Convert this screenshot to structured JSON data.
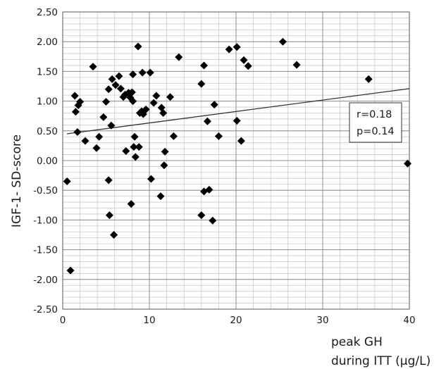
{
  "chart_data": {
    "type": "scatter",
    "xlabel": [
      "peak GH",
      "during ITT (µg/L)"
    ],
    "ylabel": "IGF-1- SD-score",
    "xlim": [
      0,
      40
    ],
    "ylim": [
      -2.5,
      2.5
    ],
    "x_ticks": [
      0,
      10,
      20,
      30,
      40
    ],
    "x_tick_labels": [
      "0",
      "10",
      "20",
      "30",
      "40"
    ],
    "y_ticks": [
      -2.5,
      -2.0,
      -1.5,
      -1.0,
      -0.5,
      0.0,
      0.5,
      1.0,
      1.5,
      2.0,
      2.5
    ],
    "y_tick_labels": [
      "-2.50",
      "-2.00",
      "-1.50",
      "-1.00",
      "-0.50",
      "0.00",
      "0.50",
      "1.00",
      "1.50",
      "2.00",
      "2.50"
    ],
    "grid": true,
    "marker": "diamond",
    "marker_color": "#000000",
    "trendline": {
      "x": [
        0.5,
        40
      ],
      "y": [
        0.45,
        1.21
      ]
    },
    "annotation": {
      "lines": [
        "r=0.18",
        "p=0.14"
      ]
    },
    "points": [
      {
        "x": 0.5,
        "y": -0.35
      },
      {
        "x": 0.9,
        "y": -1.85
      },
      {
        "x": 1.4,
        "y": 1.09
      },
      {
        "x": 1.5,
        "y": 0.82
      },
      {
        "x": 1.7,
        "y": 0.48
      },
      {
        "x": 1.8,
        "y": 0.93
      },
      {
        "x": 2.0,
        "y": 0.99
      },
      {
        "x": 2.6,
        "y": 0.33
      },
      {
        "x": 3.5,
        "y": 1.58
      },
      {
        "x": 3.9,
        "y": 0.21
      },
      {
        "x": 4.2,
        "y": 0.4
      },
      {
        "x": 4.7,
        "y": 0.73
      },
      {
        "x": 5.0,
        "y": 0.99
      },
      {
        "x": 5.3,
        "y": 1.2
      },
      {
        "x": 5.3,
        "y": -0.33
      },
      {
        "x": 5.4,
        "y": -0.92
      },
      {
        "x": 5.6,
        "y": 0.59
      },
      {
        "x": 5.7,
        "y": 1.37
      },
      {
        "x": 5.9,
        "y": -1.25
      },
      {
        "x": 6.1,
        "y": 1.27
      },
      {
        "x": 6.5,
        "y": 1.42
      },
      {
        "x": 6.7,
        "y": 1.21
      },
      {
        "x": 7.0,
        "y": 1.07
      },
      {
        "x": 7.2,
        "y": 1.11
      },
      {
        "x": 7.3,
        "y": 0.16
      },
      {
        "x": 7.6,
        "y": 1.14
      },
      {
        "x": 7.8,
        "y": 1.06
      },
      {
        "x": 7.9,
        "y": -0.73
      },
      {
        "x": 8.0,
        "y": 1.15
      },
      {
        "x": 8.1,
        "y": 1.0
      },
      {
        "x": 8.1,
        "y": 1.45
      },
      {
        "x": 8.2,
        "y": 0.23
      },
      {
        "x": 8.3,
        "y": 0.4
      },
      {
        "x": 8.4,
        "y": 0.06
      },
      {
        "x": 8.7,
        "y": 1.92
      },
      {
        "x": 8.8,
        "y": 0.23
      },
      {
        "x": 8.9,
        "y": 0.8
      },
      {
        "x": 9.1,
        "y": 0.83
      },
      {
        "x": 9.2,
        "y": 1.48
      },
      {
        "x": 9.3,
        "y": 0.78
      },
      {
        "x": 9.6,
        "y": 0.86
      },
      {
        "x": 10.1,
        "y": 1.48
      },
      {
        "x": 10.2,
        "y": -0.31
      },
      {
        "x": 10.5,
        "y": 0.97
      },
      {
        "x": 10.8,
        "y": 1.09
      },
      {
        "x": 11.3,
        "y": -0.6
      },
      {
        "x": 11.4,
        "y": 0.89
      },
      {
        "x": 11.6,
        "y": 0.8
      },
      {
        "x": 11.7,
        "y": -0.08
      },
      {
        "x": 11.8,
        "y": 0.15
      },
      {
        "x": 12.4,
        "y": 1.07
      },
      {
        "x": 12.8,
        "y": 0.41
      },
      {
        "x": 13.4,
        "y": 1.74
      },
      {
        "x": 16.0,
        "y": 1.29
      },
      {
        "x": 16.0,
        "y": -0.92
      },
      {
        "x": 16.3,
        "y": 1.6
      },
      {
        "x": 16.3,
        "y": -0.52
      },
      {
        "x": 16.7,
        "y": 0.66
      },
      {
        "x": 16.9,
        "y": -0.49
      },
      {
        "x": 17.3,
        "y": -1.01
      },
      {
        "x": 17.5,
        "y": 0.94
      },
      {
        "x": 18.0,
        "y": 0.41
      },
      {
        "x": 19.2,
        "y": 1.87
      },
      {
        "x": 20.1,
        "y": 1.91
      },
      {
        "x": 20.1,
        "y": 0.67
      },
      {
        "x": 20.6,
        "y": 0.33
      },
      {
        "x": 20.9,
        "y": 1.69
      },
      {
        "x": 21.4,
        "y": 1.59
      },
      {
        "x": 25.4,
        "y": 2.0
      },
      {
        "x": 27.0,
        "y": 1.61
      },
      {
        "x": 35.3,
        "y": 1.37
      },
      {
        "x": 39.8,
        "y": -0.05
      }
    ]
  }
}
